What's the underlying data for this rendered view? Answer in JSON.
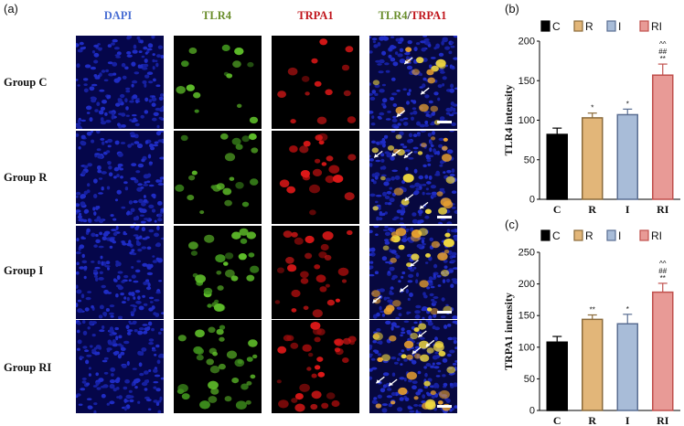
{
  "panel_labels": {
    "a": "(a)",
    "b": "(b)",
    "c": "(c)"
  },
  "columns": {
    "dapi": "DAPI",
    "tlr4": "TLR4",
    "trpa1": "TRPA1",
    "merge_a": "TLR4",
    "merge_sep": "/",
    "merge_b": "TRPA1"
  },
  "rows": [
    "Group  C",
    "Group  R",
    "Group  I",
    "Group  RI"
  ],
  "colors": {
    "dapi_label": "#4a6fd4",
    "tlr4_label": "#6a8e2c",
    "trpa1_label": "#c0141b",
    "bar_C": "#000000",
    "bar_R": "#e2b679",
    "bar_I": "#a8bcd8",
    "bar_RI": "#e89a96"
  },
  "chart_data": [
    {
      "type": "bar",
      "panel": "(b)",
      "categories": [
        "C",
        "R",
        "I",
        "RI"
      ],
      "legend": [
        "C",
        "R",
        "I",
        "RI"
      ],
      "values": [
        82,
        103,
        107,
        157
      ],
      "errors": [
        8,
        6,
        7,
        14
      ],
      "significance": [
        [],
        [
          "*"
        ],
        [
          "*"
        ],
        [
          "^^",
          "##",
          "**"
        ]
      ],
      "ylabel": "TLR4 intensity",
      "ylim": [
        0,
        200
      ],
      "yticks": [
        0,
        50,
        100,
        150,
        200
      ]
    },
    {
      "type": "bar",
      "panel": "(c)",
      "categories": [
        "C",
        "R",
        "I",
        "RI"
      ],
      "legend": [
        "C",
        "R",
        "I",
        "RI"
      ],
      "values": [
        108,
        144,
        137,
        187
      ],
      "errors": [
        9,
        7,
        15,
        14
      ],
      "significance": [
        [],
        [
          "**"
        ],
        [
          "*"
        ],
        [
          "^^",
          "##",
          "**"
        ]
      ],
      "ylabel": "TRPA1 intensity",
      "ylim": [
        0,
        250
      ],
      "yticks": [
        0,
        50,
        100,
        150,
        200,
        250
      ]
    }
  ]
}
